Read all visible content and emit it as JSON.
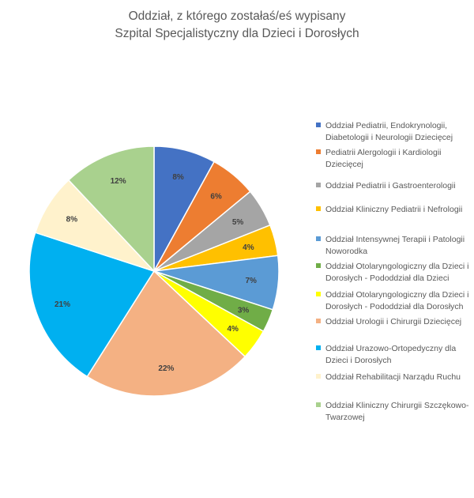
{
  "chart_data": {
    "type": "pie",
    "title": "Oddział, z którego zostałaś/eś wypisany",
    "subtitle": "Szpital Specjalistyczny dla Dzieci i Dorosłych",
    "legend_position": "right",
    "slices": [
      {
        "label": "Oddział Pediatrii, Endokrynologii, Diabetologii i Neurologii Dziecięcej",
        "value": 8,
        "display": "8%",
        "color": "#4472C4"
      },
      {
        "label": "Pediatrii Alergologii i Kardiologii Dziecięcej",
        "value": 6,
        "display": "6%",
        "color": "#ED7D31"
      },
      {
        "label": "Oddział Pediatrii i Gastroenterologii",
        "value": 5,
        "display": "5%",
        "color": "#A5A5A5"
      },
      {
        "label": "Oddział Kliniczny Pediatrii i Nefrologii",
        "value": 4,
        "display": "4%",
        "color": "#FFC000"
      },
      {
        "label": "Oddział Intensywnej Terapii i Patologii Noworodka",
        "value": 7,
        "display": "7%",
        "color": "#5B9BD5"
      },
      {
        "label": "Oddział Otolaryngologiczny dla Dzieci i Dorosłych - Pododdział dla Dzieci",
        "value": 3,
        "display": "3%",
        "color": "#70AD47"
      },
      {
        "label": "Oddział Otolaryngologiczny dla Dzieci i Dorosłych - Pododdział dla Dorosłych",
        "value": 4,
        "display": "4%",
        "color": "#FFFF00"
      },
      {
        "label": "Oddział Urologii i Chirurgii Dziecięcej",
        "value": 22,
        "display": "22%",
        "color": "#F4B183"
      },
      {
        "label": "Oddział Urazowo-Ortopedyczny dla Dzieci i Dorosłych",
        "value": 21,
        "display": "21%",
        "color": "#00B0F0"
      },
      {
        "label": "Oddział Rehabilitacji Narządu Ruchu",
        "value": 8,
        "display": "8%",
        "color": "#FFF2CC"
      },
      {
        "label": "Oddział Kliniczny Chirurgii Szczękowo-Twarzowej",
        "value": 12,
        "display": "12%",
        "color": "#A9D18E"
      }
    ]
  }
}
